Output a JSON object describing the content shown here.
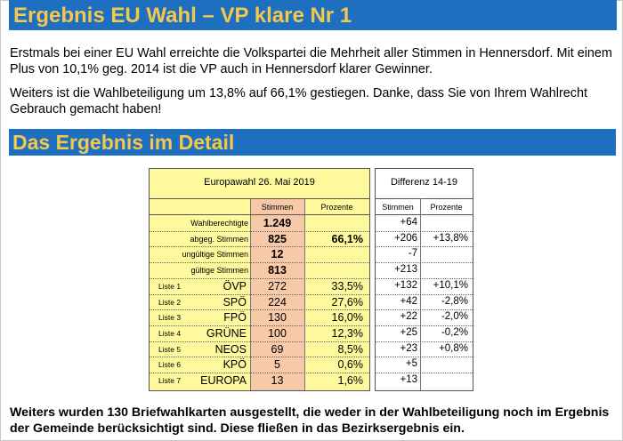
{
  "heading1": "Ergebnis EU Wahl – VP klare Nr 1",
  "para1": "Erstmals bei einer EU Wahl erreichte die Volkspartei die Mehrheit aller Stimmen in Hennersdorf. Mit einem Plus von 10,1% geg. 2014 ist die VP auch in Hennersdorf klarer Gewinner.",
  "para2": "Weiters ist die Wahlbeteiligung um 13,8% auf 66,1% gestiegen. Danke, dass Sie von Ihrem Wahlrecht Gebrauch gemacht haben!",
  "heading2": "Das Ergebnis im Detail",
  "table": {
    "title": "Europawahl 26. Mai 2019",
    "col_stimmen": "Stimmen",
    "col_prozente": "Prozente",
    "summary": [
      {
        "label": "Wahlberechtigte",
        "stimmen": "1.249",
        "prozente": ""
      },
      {
        "label": "abgeg. Stimmen",
        "stimmen": "825",
        "prozente": "66,1%"
      },
      {
        "label": "ungültige Stimmen",
        "stimmen": "12",
        "prozente": ""
      },
      {
        "label": "gültige Stimmen",
        "stimmen": "813",
        "prozente": ""
      }
    ],
    "parties": [
      {
        "liste": "Liste 1",
        "name": "ÖVP",
        "stimmen": "272",
        "prozente": "33,5%"
      },
      {
        "liste": "Liste 2",
        "name": "SPÖ",
        "stimmen": "224",
        "prozente": "27,6%"
      },
      {
        "liste": "Liste 3",
        "name": "FPÖ",
        "stimmen": "130",
        "prozente": "16,0%"
      },
      {
        "liste": "Liste 4",
        "name": "GRÜNE",
        "stimmen": "100",
        "prozente": "12,3%"
      },
      {
        "liste": "Liste 5",
        "name": "NEOS",
        "stimmen": "69",
        "prozente": "8,5%"
      },
      {
        "liste": "Liste 6",
        "name": "KPÖ",
        "stimmen": "5",
        "prozente": "0,6%"
      },
      {
        "liste": "Liste 7",
        "name": "EUROPA",
        "stimmen": "13",
        "prozente": "1,6%"
      }
    ]
  },
  "diff": {
    "title": "Differenz 14-19",
    "col_stimmen": "Stimmen",
    "col_prozente": "Prozente",
    "rows": [
      {
        "stimmen": "+64",
        "prozente": ""
      },
      {
        "stimmen": "+206",
        "prozente": "+13,8%"
      },
      {
        "stimmen": "-7",
        "prozente": ""
      },
      {
        "stimmen": "+213",
        "prozente": ""
      },
      {
        "stimmen": "+132",
        "prozente": "+10,1%"
      },
      {
        "stimmen": "+42",
        "prozente": "-2,8%"
      },
      {
        "stimmen": "+22",
        "prozente": "-2,0%"
      },
      {
        "stimmen": "+25",
        "prozente": "-0,2%"
      },
      {
        "stimmen": "+23",
        "prozente": "+0,8%"
      },
      {
        "stimmen": "+5",
        "prozente": ""
      },
      {
        "stimmen": "+13",
        "prozente": ""
      }
    ]
  },
  "para3": "Weiters wurden 130 Briefwahlkarten ausgestellt, die weder in der Wahlbeteiligung noch im Ergebnis der Gemeinde berücksichtigt sind. Diese fließen in das Bezirksergebnis ein."
}
